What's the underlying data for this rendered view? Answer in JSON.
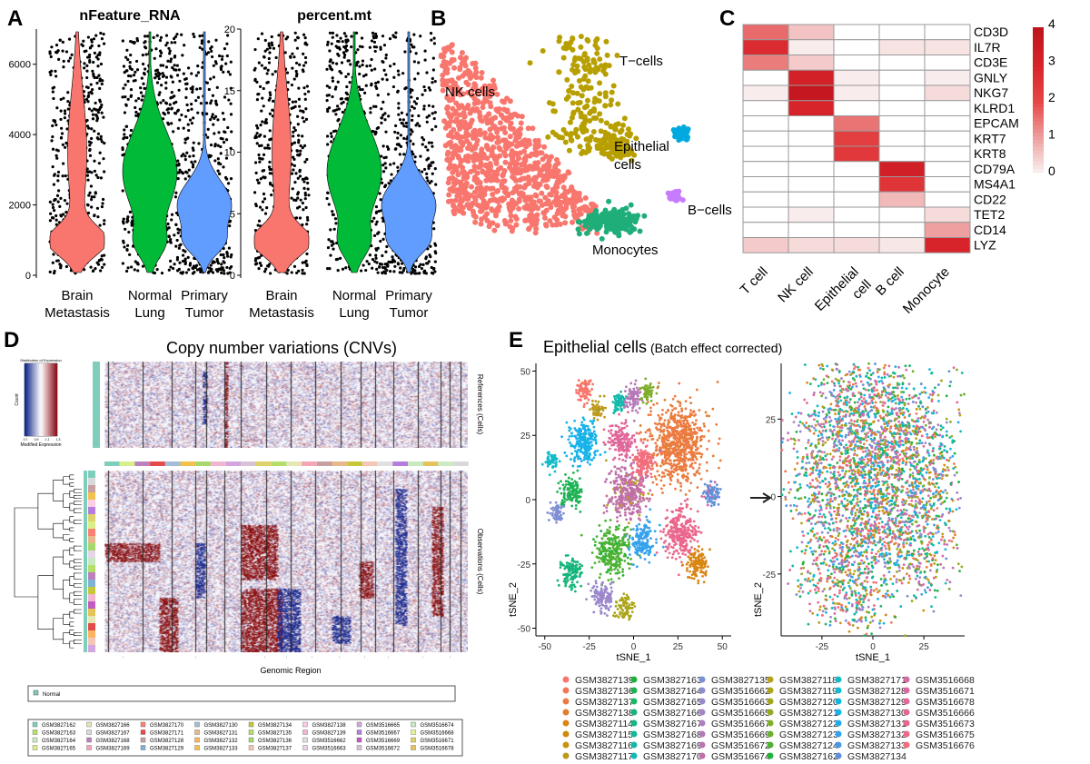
{
  "panels": {
    "a": "A",
    "b": "B",
    "c": "C",
    "d": "D",
    "e": "E"
  },
  "chart_data": [
    {
      "type": "violin",
      "panel": "A",
      "title": "nFeature_RNA",
      "categories": [
        "Brain\nMetastasis",
        "Normal\nLung",
        "Primary\nTumor"
      ],
      "category_lines": [
        [
          "Brain",
          "Metastasis"
        ],
        [
          "Normal",
          "Lung"
        ],
        [
          "Primary",
          "Tumor"
        ]
      ],
      "colors": [
        "#F8766D",
        "#00BA38",
        "#619CFF"
      ],
      "ylim": [
        0,
        7000
      ],
      "yticks": [
        0,
        2000,
        4000,
        6000
      ],
      "peak_values": [
        900,
        3000,
        2000
      ]
    },
    {
      "type": "violin",
      "panel": "A",
      "title": "percent.mt",
      "categories": [
        "Brain\nMetastasis",
        "Normal\nLung",
        "Primary\nTumor"
      ],
      "category_lines": [
        [
          "Brain",
          "Metastasis"
        ],
        [
          "Normal",
          "Lung"
        ],
        [
          "Primary",
          "Tumor"
        ]
      ],
      "colors": [
        "#F8766D",
        "#00BA38",
        "#619CFF"
      ],
      "ylim": [
        0,
        20
      ],
      "yticks": [
        0,
        5,
        10,
        15,
        20
      ],
      "peak_values": [
        2.5,
        8.5,
        5.5
      ]
    },
    {
      "type": "scatter",
      "panel": "B",
      "clusters": [
        {
          "name": "NK cells",
          "color": "#F8766D"
        },
        {
          "name": "T−cells",
          "color": "#B79F00"
        },
        {
          "name": "Epithelial cells",
          "label_lines": [
            "Epithelial",
            "cells"
          ],
          "color": "#00A9E0"
        },
        {
          "name": "B−cells",
          "color": "#C77CFF"
        },
        {
          "name": "Monocytes",
          "color": "#1FAE7A"
        }
      ]
    },
    {
      "type": "heatmap",
      "panel": "C",
      "columns": [
        "T cell",
        "NK cell",
        "Epithelial\ncell",
        "B cell",
        "Monocyte"
      ],
      "column_lines": [
        [
          "T cell"
        ],
        [
          "NK cell"
        ],
        [
          "Epithelial",
          "cell"
        ],
        [
          "B cell"
        ],
        [
          "Monocyte"
        ]
      ],
      "rows": [
        "CD3D",
        "IL7R",
        "CD3E",
        "GNLY",
        "NKG7",
        "KLRD1",
        "EPCAM",
        "KRT7",
        "KRT8",
        "CD79A",
        "MS4A1",
        "CD22",
        "TET2",
        "CD14",
        "LYZ"
      ],
      "values": [
        [
          1.6,
          0.6,
          0,
          0,
          0
        ],
        [
          2.8,
          0.1,
          0,
          0.2,
          0.2
        ],
        [
          1.4,
          0.5,
          0,
          0,
          0
        ],
        [
          0,
          3.2,
          0.1,
          0,
          0.1
        ],
        [
          0.1,
          3.8,
          0.1,
          0,
          0.3
        ],
        [
          0,
          3.0,
          0,
          0,
          0
        ],
        [
          0,
          0,
          1.5,
          0,
          0
        ],
        [
          0,
          0,
          2.2,
          0,
          0
        ],
        [
          0,
          0,
          2.4,
          0,
          0
        ],
        [
          0,
          0,
          0,
          3.3,
          0
        ],
        [
          0,
          0,
          0,
          2.5,
          0
        ],
        [
          0,
          0,
          0,
          0.7,
          0
        ],
        [
          0,
          0.1,
          0,
          0,
          0.3
        ],
        [
          0,
          0,
          0,
          0,
          1.0
        ],
        [
          0.5,
          0.3,
          0.3,
          0.15,
          3.0
        ]
      ],
      "colorbar": {
        "range": [
          0,
          4
        ],
        "ticks": [
          0,
          1,
          2,
          3,
          4
        ],
        "low": "#FAF4F4",
        "high": "#C0141C"
      }
    },
    {
      "type": "heatmap",
      "panel": "D",
      "title": "Copy number variations (CNVs)",
      "xlabel": "Genomic Region",
      "ylabel_top": "References (Cells)",
      "ylabel_bottom": "Observations (Cells)",
      "inset": {
        "title": "Distribution of Expression",
        "xlabel": "Modified Expression",
        "ylabel": "Count",
        "xticks": [
          "0.7",
          "0.9",
          "1.1",
          "1.3"
        ]
      },
      "legend_reference": [
        {
          "name": "Normal",
          "color": "#7FCDBB"
        }
      ],
      "legend_samples": [
        {
          "name": "GSM3827162",
          "color": "#7FCDBB"
        },
        {
          "name": "GSM3827163",
          "color": "#B3DE69"
        },
        {
          "name": "GSM3827164",
          "color": "#CCEBC5"
        },
        {
          "name": "GSM3827165",
          "color": "#D9EF8B"
        },
        {
          "name": "GSM3827166",
          "color": "#E6E6B3"
        },
        {
          "name": "GSM3827167",
          "color": "#D9D9D9"
        },
        {
          "name": "GSM3827168",
          "color": "#BC80BD"
        },
        {
          "name": "GSM3827169",
          "color": "#F4A6B7"
        },
        {
          "name": "GSM3827170",
          "color": "#FB8072"
        },
        {
          "name": "GSM3827171",
          "color": "#E34A4A"
        },
        {
          "name": "GSM3827128",
          "color": "#C9A0A0"
        },
        {
          "name": "GSM3827129",
          "color": "#80B1D3"
        },
        {
          "name": "GSM3827130",
          "color": "#A6BDD7"
        },
        {
          "name": "GSM3827131",
          "color": "#E6B88A"
        },
        {
          "name": "GSM3827132",
          "color": "#FDB462"
        },
        {
          "name": "GSM3827133",
          "color": "#F2C14E"
        },
        {
          "name": "GSM3827134",
          "color": "#C7C73A"
        },
        {
          "name": "GSM3827135",
          "color": "#B3DE69"
        },
        {
          "name": "GSM3827136",
          "color": "#A6D96A"
        },
        {
          "name": "GSM3827137",
          "color": "#F5C6B8"
        },
        {
          "name": "GSM3827138",
          "color": "#FCCDE5"
        },
        {
          "name": "GSM3827139",
          "color": "#F2B6D2"
        },
        {
          "name": "GSM3516662",
          "color": "#E0E0E0"
        },
        {
          "name": "GSM3516663",
          "color": "#E8D5E8"
        },
        {
          "name": "GSM3516665",
          "color": "#D4A6E0"
        },
        {
          "name": "GSM3516667",
          "color": "#B57EDC"
        },
        {
          "name": "GSM3516669",
          "color": "#C05BC0"
        },
        {
          "name": "GSM3516672",
          "color": "#D6C4D6"
        },
        {
          "name": "GSM3516674",
          "color": "#C7E9C0"
        },
        {
          "name": "GSM3516668",
          "color": "#E6F598"
        },
        {
          "name": "GSM3516671",
          "color": "#E0D26A"
        },
        {
          "name": "GSM3516678",
          "color": "#E5C35A"
        }
      ]
    },
    {
      "type": "scatter",
      "panel": "E",
      "title_main": "Epithelial cells",
      "title_paren": "(Batch effect corrected)",
      "plots": [
        {
          "xlabel": "tSNE_1",
          "ylabel": "tSNE_2",
          "xlim": [
            -55,
            55
          ],
          "ylim": [
            -53,
            53
          ],
          "xticks": [
            -50,
            -25,
            0,
            25,
            50
          ],
          "yticks": [
            -50,
            -25,
            0,
            25,
            50
          ]
        },
        {
          "xlabel": "tSNE_1",
          "ylabel": "tSNE_2",
          "xlim": [
            -45,
            45
          ],
          "ylim": [
            -45,
            43
          ],
          "xticks": [
            -25,
            0,
            25
          ],
          "yticks": [
            -25,
            0,
            25
          ]
        }
      ],
      "legend": [
        {
          "name": "GSM3827139",
          "color": "#F8766D"
        },
        {
          "name": "GSM3827136",
          "color": "#F2785A"
        },
        {
          "name": "GSM3827137",
          "color": "#EC7B43"
        },
        {
          "name": "GSM3827138",
          "color": "#E27F2A"
        },
        {
          "name": "GSM3827114",
          "color": "#DA8515"
        },
        {
          "name": "GSM3827115",
          "color": "#D18B0A"
        },
        {
          "name": "GSM3827116",
          "color": "#C99310"
        },
        {
          "name": "GSM3827117",
          "color": "#BF9A1A"
        },
        {
          "name": "GSM3827163",
          "color": "#1DB239"
        },
        {
          "name": "GSM3827164",
          "color": "#1FB251"
        },
        {
          "name": "GSM3827165",
          "color": "#1DB466"
        },
        {
          "name": "GSM3827166",
          "color": "#17B579"
        },
        {
          "name": "GSM3827167",
          "color": "#13B689"
        },
        {
          "name": "GSM3827168",
          "color": "#12B899"
        },
        {
          "name": "GSM3827169",
          "color": "#13B9A8"
        },
        {
          "name": "GSM3827170",
          "color": "#13BAB7"
        },
        {
          "name": "GSM3827135",
          "color": "#7B8FD4"
        },
        {
          "name": "GSM3516662",
          "color": "#8C8ED1"
        },
        {
          "name": "GSM3516663",
          "color": "#9A89CC"
        },
        {
          "name": "GSM3516665",
          "color": "#A485C6"
        },
        {
          "name": "GSM3516667",
          "color": "#AC7FC0"
        },
        {
          "name": "GSM3516669",
          "color": "#B479B9"
        },
        {
          "name": "GSM3516672",
          "color": "#BB74B1"
        },
        {
          "name": "GSM3516674",
          "color": "#C06FA9"
        },
        {
          "name": "GSM3827118",
          "color": "#B7A21A"
        },
        {
          "name": "GSM3827119",
          "color": "#ADA51A"
        },
        {
          "name": "GSM3827120",
          "color": "#A2A81E"
        },
        {
          "name": "GSM3827121",
          "color": "#93AB24"
        },
        {
          "name": "GSM3827122",
          "color": "#81AE2A"
        },
        {
          "name": "GSM3827123",
          "color": "#6CB030"
        },
        {
          "name": "GSM3827124",
          "color": "#4FB234"
        },
        {
          "name": "GSM3827162",
          "color": "#21B33A"
        },
        {
          "name": "GSM3827171",
          "color": "#13BCC5"
        },
        {
          "name": "GSM3827128",
          "color": "#11BBD2"
        },
        {
          "name": "GSM3827129",
          "color": "#10B8DE"
        },
        {
          "name": "GSM3827130",
          "color": "#15B3E8"
        },
        {
          "name": "GSM3827131",
          "color": "#21ACEE"
        },
        {
          "name": "GSM3827132",
          "color": "#33A3EE"
        },
        {
          "name": "GSM3827133",
          "color": "#4A98E6"
        },
        {
          "name": "GSM3827134",
          "color": "#6190D8"
        },
        {
          "name": "GSM3516668",
          "color": "#D36BA6"
        },
        {
          "name": "GSM3516671",
          "color": "#DA69A0"
        },
        {
          "name": "GSM3516678",
          "color": "#E0679A"
        },
        {
          "name": "GSM3516666",
          "color": "#E56694"
        },
        {
          "name": "GSM3516673",
          "color": "#EA668D"
        },
        {
          "name": "GSM3516675",
          "color": "#EE6886"
        },
        {
          "name": "GSM3516676",
          "color": "#F26C7E"
        }
      ]
    }
  ]
}
